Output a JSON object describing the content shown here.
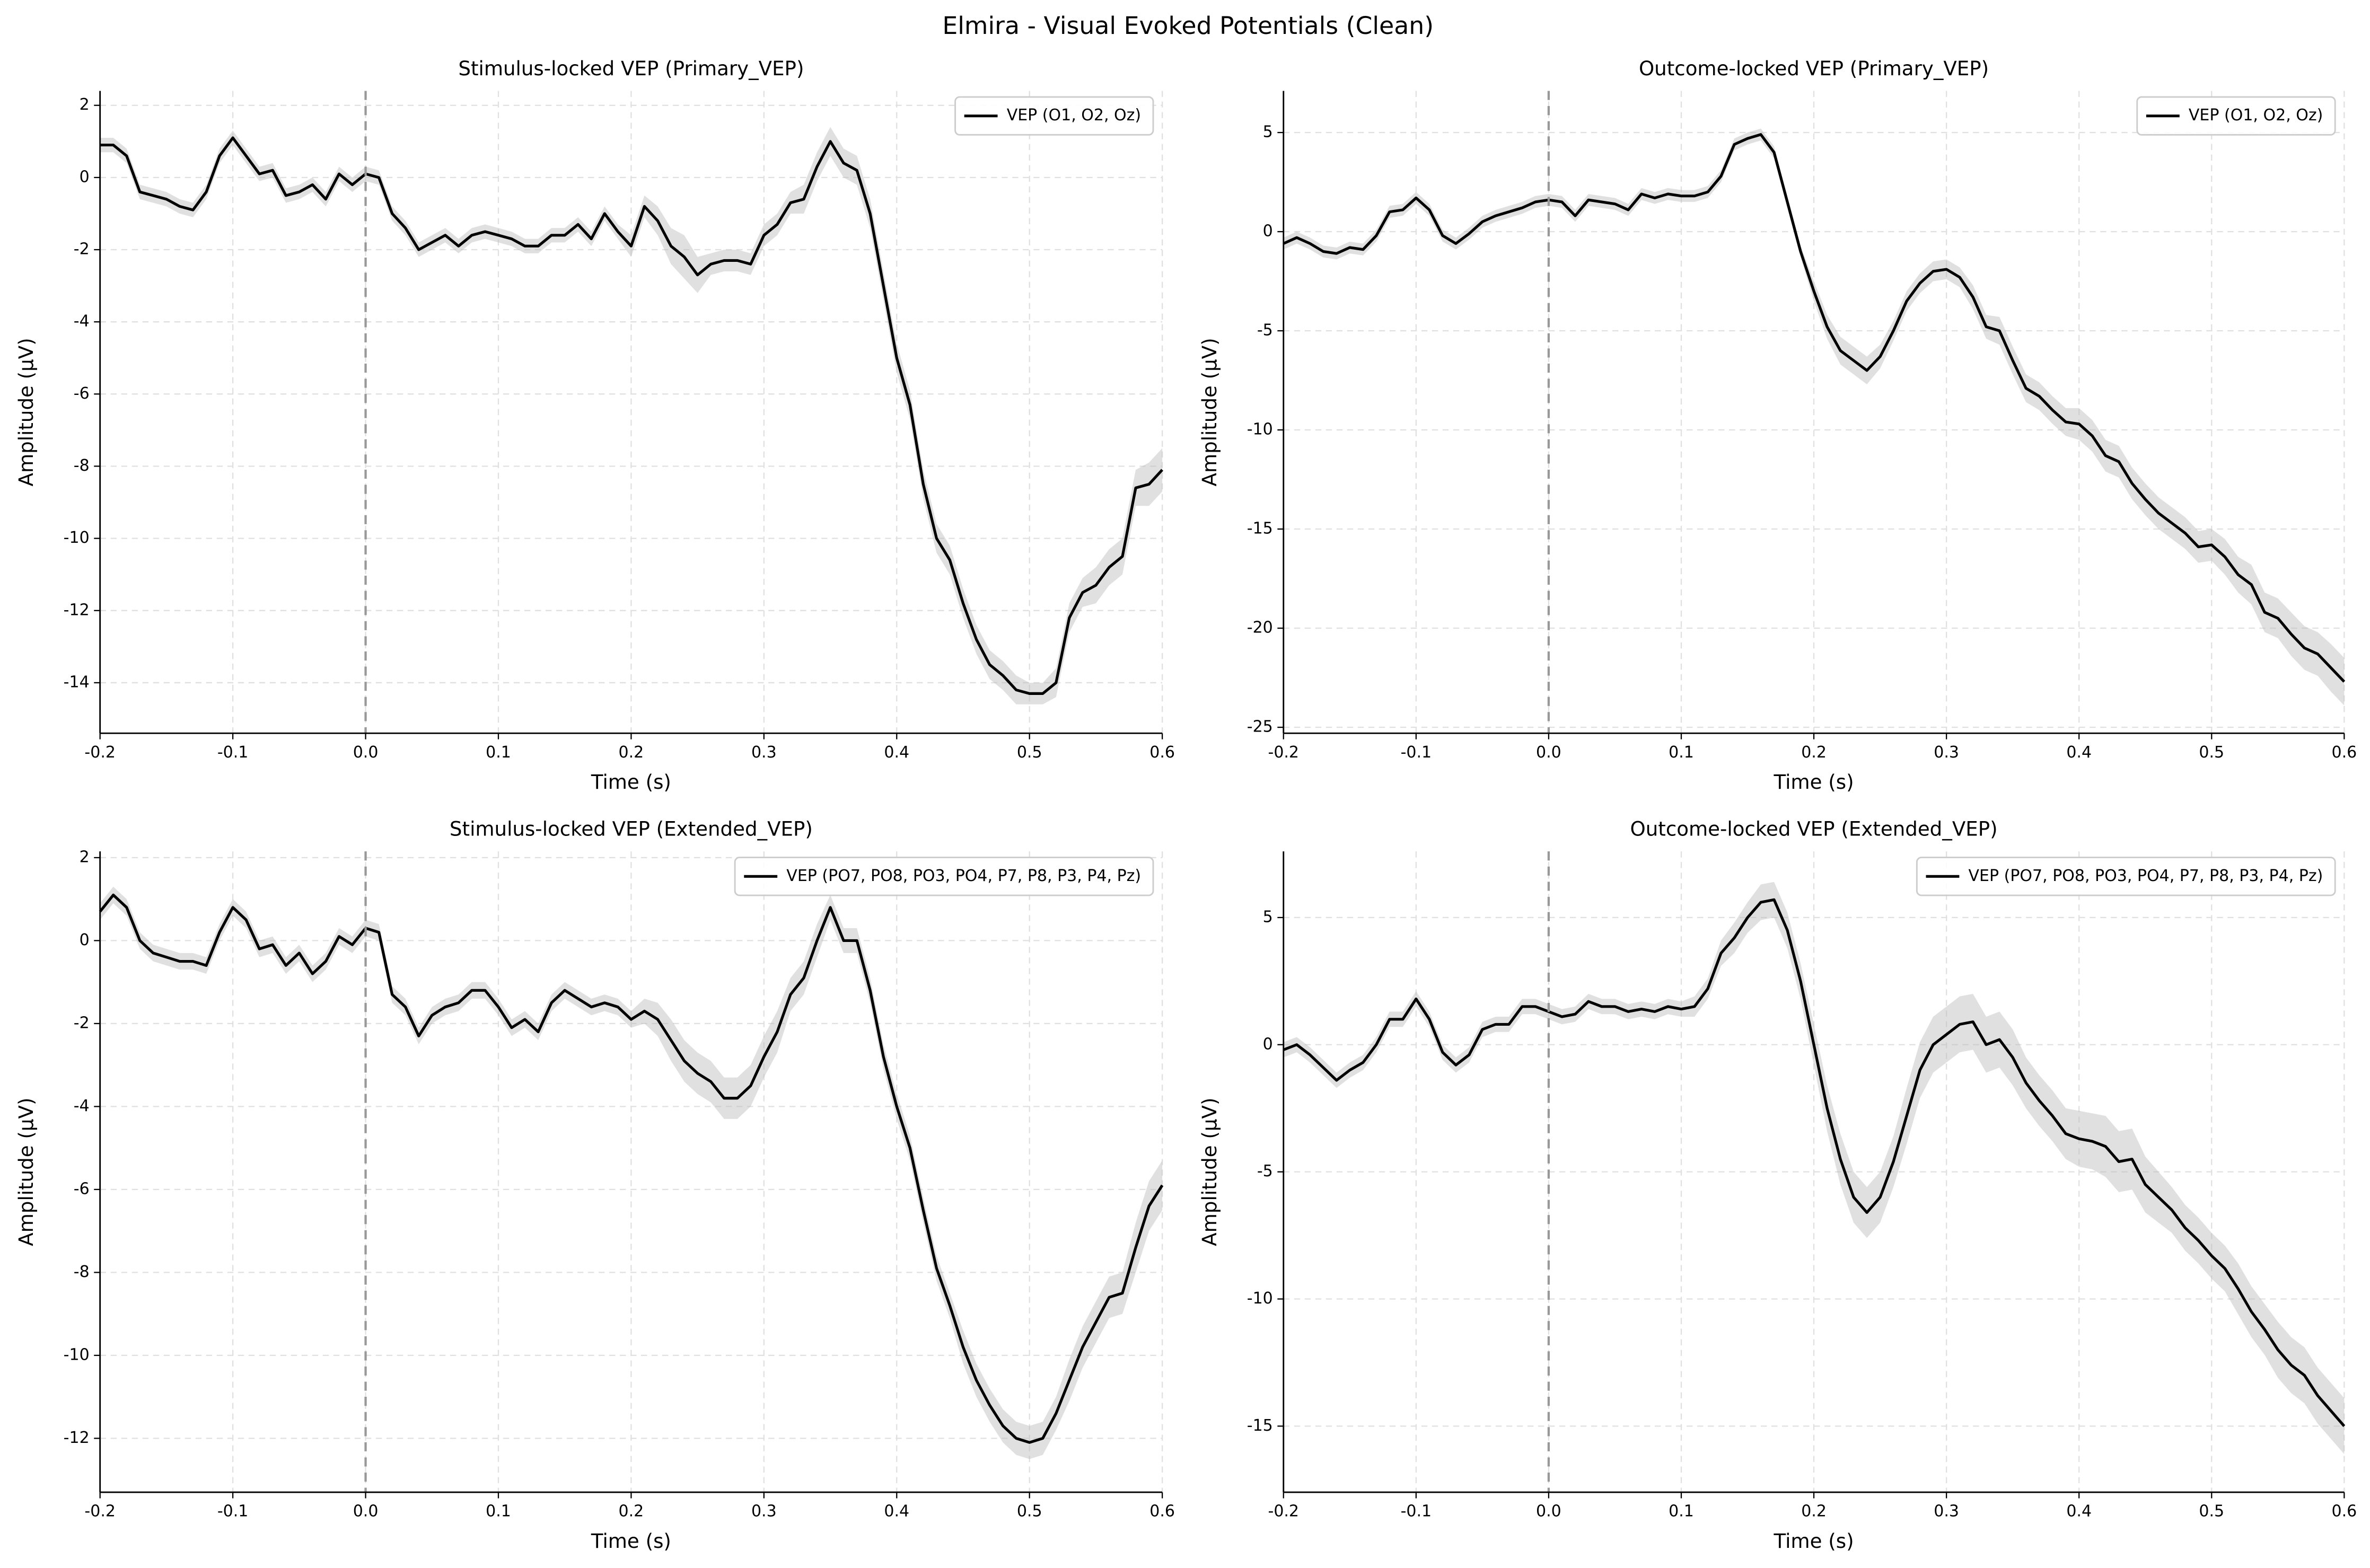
{
  "title": "Elmira - Visual Evoked Potentials (Clean)",
  "chart_data": [
    {
      "type": "line",
      "title": "Stimulus-locked VEP (Primary_VEP)",
      "xlabel": "Time (s)",
      "ylabel": "Amplitude (µV)",
      "legend": "upper right",
      "grid": true,
      "vlines": [
        0
      ],
      "xlim": [
        -0.2,
        0.6
      ],
      "ylim": [
        -15.4,
        2.4
      ],
      "xticks": [
        -0.2,
        -0.1,
        {
          "value": 0,
          "label": "0.0"
        },
        0.1,
        0.2,
        0.3,
        0.4,
        0.5,
        0.6
      ],
      "yticks": [
        -14,
        -12,
        -10,
        -8,
        -6,
        -4,
        -2,
        0,
        2
      ],
      "x": [
        -0.2,
        -0.19,
        -0.18,
        -0.17,
        -0.16,
        -0.15,
        -0.14,
        -0.13,
        -0.12,
        -0.11,
        -0.1,
        -0.09,
        -0.08,
        -0.07,
        -0.06,
        -0.05,
        -0.04,
        -0.03,
        -0.02,
        -0.01,
        0,
        0.01,
        0.02,
        0.03,
        0.04,
        0.05,
        0.06,
        0.07,
        0.08,
        0.09,
        0.1,
        0.11,
        0.12,
        0.13,
        0.14,
        0.15,
        0.16,
        0.17,
        0.18,
        0.19,
        0.2,
        0.21,
        0.22,
        0.23,
        0.24,
        0.25,
        0.26,
        0.27,
        0.28,
        0.29,
        0.3,
        0.31,
        0.32,
        0.33,
        0.34,
        0.35,
        0.36,
        0.37,
        0.38,
        0.39,
        0.4,
        0.41,
        0.42,
        0.43,
        0.44,
        0.45,
        0.46,
        0.47,
        0.48,
        0.49,
        0.5,
        0.51,
        0.52,
        0.53,
        0.54,
        0.55,
        0.56,
        0.57,
        0.58,
        0.59,
        0.6
      ],
      "series": [
        {
          "name": "VEP (O1, O2, Oz)",
          "color": "#000000",
          "band_color": "#bbbbbb",
          "values": [
            0.9,
            0.9,
            0.6,
            -0.4,
            -0.5,
            -0.6,
            -0.8,
            -0.9,
            -0.4,
            0.6,
            1.1,
            0.6,
            0.1,
            0.2,
            -0.5,
            -0.4,
            -0.2,
            -0.6,
            0.1,
            -0.2,
            0.1,
            0.0,
            -1.0,
            -1.4,
            -2.0,
            -1.8,
            -1.6,
            -1.9,
            -1.6,
            -1.5,
            -1.6,
            -1.7,
            -1.9,
            -1.9,
            -1.6,
            -1.6,
            -1.3,
            -1.7,
            -1.0,
            -1.5,
            -1.9,
            -0.8,
            -1.2,
            -1.9,
            -2.2,
            -2.7,
            -2.4,
            -2.3,
            -2.3,
            -2.4,
            -1.6,
            -1.3,
            -0.7,
            -0.6,
            0.3,
            1.0,
            0.4,
            0.2,
            -1.0,
            -3.0,
            -5.0,
            -6.3,
            -8.5,
            -10.0,
            -10.6,
            -11.8,
            -12.8,
            -13.5,
            -13.8,
            -14.2,
            -14.3,
            -14.3,
            -14.0,
            -12.2,
            -11.5,
            -11.3,
            -10.8,
            -10.5,
            -8.6,
            -8.5,
            -8.1
          ],
          "errors": [
            0.2,
            0.2,
            0.2,
            0.2,
            0.2,
            0.2,
            0.2,
            0.2,
            0.2,
            0.2,
            0.2,
            0.2,
            0.2,
            0.2,
            0.2,
            0.2,
            0.2,
            0.2,
            0.2,
            0.2,
            0.2,
            0.2,
            0.2,
            0.2,
            0.2,
            0.2,
            0.2,
            0.2,
            0.2,
            0.2,
            0.2,
            0.2,
            0.2,
            0.2,
            0.2,
            0.2,
            0.2,
            0.2,
            0.2,
            0.2,
            0.3,
            0.3,
            0.4,
            0.5,
            0.6,
            0.5,
            0.3,
            0.3,
            0.3,
            0.3,
            0.3,
            0.3,
            0.3,
            0.4,
            0.4,
            0.4,
            0.4,
            0.4,
            0.4,
            0.4,
            0.4,
            0.4,
            0.4,
            0.4,
            0.4,
            0.4,
            0.4,
            0.4,
            0.4,
            0.4,
            0.3,
            0.3,
            0.4,
            0.4,
            0.4,
            0.5,
            0.5,
            0.5,
            0.5,
            0.6,
            0.6
          ]
        }
      ]
    },
    {
      "type": "line",
      "title": "Outcome-locked VEP (Primary_VEP)",
      "xlabel": "Time (s)",
      "ylabel": "Amplitude (µV)",
      "legend": "upper right",
      "grid": true,
      "vlines": [
        0
      ],
      "xlim": [
        -0.2,
        0.6
      ],
      "ylim": [
        -25.3,
        7.1
      ],
      "xticks": [
        -0.2,
        -0.1,
        {
          "value": 0,
          "label": "0.0"
        },
        0.1,
        0.2,
        0.3,
        0.4,
        0.5,
        0.6
      ],
      "yticks": [
        -25,
        -20,
        -15,
        -10,
        -5,
        0,
        5
      ],
      "x": [
        -0.2,
        -0.19,
        -0.18,
        -0.17,
        -0.16,
        -0.15,
        -0.14,
        -0.13,
        -0.12,
        -0.11,
        -0.1,
        -0.09,
        -0.08,
        -0.07,
        -0.06,
        -0.05,
        -0.04,
        -0.03,
        -0.02,
        -0.01,
        0,
        0.01,
        0.02,
        0.03,
        0.04,
        0.05,
        0.06,
        0.07,
        0.08,
        0.09,
        0.1,
        0.11,
        0.12,
        0.13,
        0.14,
        0.15,
        0.16,
        0.17,
        0.18,
        0.19,
        0.2,
        0.21,
        0.22,
        0.23,
        0.24,
        0.25,
        0.26,
        0.27,
        0.28,
        0.29,
        0.3,
        0.31,
        0.32,
        0.33,
        0.34,
        0.35,
        0.36,
        0.37,
        0.38,
        0.39,
        0.4,
        0.41,
        0.42,
        0.43,
        0.44,
        0.45,
        0.46,
        0.47,
        0.48,
        0.49,
        0.5,
        0.51,
        0.52,
        0.53,
        0.54,
        0.55,
        0.56,
        0.57,
        0.58,
        0.59,
        0.6
      ],
      "series": [
        {
          "name": "VEP (O1, O2, Oz)",
          "color": "#000000",
          "band_color": "#bbbbbb",
          "values": [
            -0.6,
            -0.3,
            -0.6,
            -1.0,
            -1.1,
            -0.8,
            -0.9,
            -0.2,
            1.0,
            1.1,
            1.7,
            1.1,
            -0.2,
            -0.6,
            -0.1,
            0.5,
            0.8,
            1.0,
            1.2,
            1.5,
            1.6,
            1.5,
            0.8,
            1.6,
            1.5,
            1.4,
            1.1,
            1.9,
            1.7,
            1.9,
            1.8,
            1.8,
            2.0,
            2.8,
            4.4,
            4.7,
            4.9,
            4.0,
            1.5,
            -1.0,
            -3.0,
            -4.8,
            -6.0,
            -6.5,
            -7.0,
            -6.3,
            -5.0,
            -3.5,
            -2.6,
            -2.0,
            -1.9,
            -2.3,
            -3.3,
            -4.8,
            -5.0,
            -6.5,
            -7.9,
            -8.3,
            -9.0,
            -9.6,
            -9.7,
            -10.3,
            -11.3,
            -11.6,
            -12.7,
            -13.5,
            -14.2,
            -14.7,
            -15.2,
            -15.9,
            -15.8,
            -16.4,
            -17.3,
            -17.8,
            -19.2,
            -19.5,
            -20.3,
            -21.0,
            -21.3,
            -22.0,
            -22.7
          ],
          "errors": [
            0.3,
            0.3,
            0.3,
            0.3,
            0.3,
            0.3,
            0.3,
            0.3,
            0.3,
            0.3,
            0.3,
            0.3,
            0.3,
            0.3,
            0.3,
            0.3,
            0.3,
            0.3,
            0.3,
            0.3,
            0.3,
            0.3,
            0.3,
            0.3,
            0.3,
            0.3,
            0.3,
            0.3,
            0.3,
            0.3,
            0.3,
            0.3,
            0.3,
            0.3,
            0.3,
            0.3,
            0.3,
            0.3,
            0.3,
            0.3,
            0.5,
            0.6,
            0.7,
            0.7,
            0.7,
            0.6,
            0.5,
            0.5,
            0.5,
            0.5,
            0.5,
            0.5,
            0.6,
            0.6,
            0.7,
            0.7,
            0.7,
            0.7,
            0.7,
            0.7,
            0.8,
            0.8,
            0.8,
            0.8,
            0.8,
            0.8,
            0.8,
            0.8,
            0.8,
            0.8,
            0.8,
            0.9,
            0.9,
            1.0,
            1.0,
            1.0,
            1.1,
            1.1,
            1.1,
            1.2,
            1.2
          ]
        }
      ]
    },
    {
      "type": "line",
      "title": "Stimulus-locked VEP (Extended_VEP)",
      "xlabel": "Time (s)",
      "ylabel": "Amplitude (µV)",
      "legend": "upper right",
      "grid": true,
      "vlines": [
        0
      ],
      "xlim": [
        -0.2,
        0.6
      ],
      "ylim": [
        -13.3,
        2.15
      ],
      "xticks": [
        -0.2,
        -0.1,
        {
          "value": 0,
          "label": "0.0"
        },
        0.1,
        0.2,
        0.3,
        0.4,
        0.5,
        0.6
      ],
      "yticks": [
        -12,
        -10,
        -8,
        -6,
        -4,
        -2,
        0,
        2
      ],
      "x": [
        -0.2,
        -0.19,
        -0.18,
        -0.17,
        -0.16,
        -0.15,
        -0.14,
        -0.13,
        -0.12,
        -0.11,
        -0.1,
        -0.09,
        -0.08,
        -0.07,
        -0.06,
        -0.05,
        -0.04,
        -0.03,
        -0.02,
        -0.01,
        0,
        0.01,
        0.02,
        0.03,
        0.04,
        0.05,
        0.06,
        0.07,
        0.08,
        0.09,
        0.1,
        0.11,
        0.12,
        0.13,
        0.14,
        0.15,
        0.16,
        0.17,
        0.18,
        0.19,
        0.2,
        0.21,
        0.22,
        0.23,
        0.24,
        0.25,
        0.26,
        0.27,
        0.28,
        0.29,
        0.3,
        0.31,
        0.32,
        0.33,
        0.34,
        0.35,
        0.36,
        0.37,
        0.38,
        0.39,
        0.4,
        0.41,
        0.42,
        0.43,
        0.44,
        0.45,
        0.46,
        0.47,
        0.48,
        0.49,
        0.5,
        0.51,
        0.52,
        0.53,
        0.54,
        0.55,
        0.56,
        0.57,
        0.58,
        0.59,
        0.6
      ],
      "series": [
        {
          "name": "VEP (PO7, PO8, PO3, PO4, P7, P8, P3, P4, Pz)",
          "color": "#000000",
          "band_color": "#bbbbbb",
          "values": [
            0.7,
            1.1,
            0.8,
            0.0,
            -0.3,
            -0.4,
            -0.5,
            -0.5,
            -0.6,
            0.2,
            0.8,
            0.5,
            -0.2,
            -0.1,
            -0.6,
            -0.3,
            -0.8,
            -0.5,
            0.1,
            -0.1,
            0.3,
            0.2,
            -1.3,
            -1.6,
            -2.3,
            -1.8,
            -1.6,
            -1.5,
            -1.2,
            -1.2,
            -1.6,
            -2.1,
            -1.9,
            -2.2,
            -1.5,
            -1.2,
            -1.4,
            -1.6,
            -1.5,
            -1.6,
            -1.9,
            -1.7,
            -1.9,
            -2.4,
            -2.9,
            -3.2,
            -3.4,
            -3.8,
            -3.8,
            -3.5,
            -2.8,
            -2.2,
            -1.3,
            -0.9,
            0.0,
            0.8,
            0.0,
            0.0,
            -1.2,
            -2.8,
            -4.0,
            -5.0,
            -6.5,
            -7.9,
            -8.8,
            -9.8,
            -10.6,
            -11.2,
            -11.7,
            -12.0,
            -12.1,
            -12.0,
            -11.4,
            -10.6,
            -9.8,
            -9.2,
            -8.6,
            -8.5,
            -7.4,
            -6.4,
            -5.9
          ],
          "errors": [
            0.2,
            0.2,
            0.2,
            0.2,
            0.2,
            0.2,
            0.2,
            0.2,
            0.2,
            0.2,
            0.2,
            0.2,
            0.2,
            0.2,
            0.2,
            0.2,
            0.2,
            0.2,
            0.2,
            0.2,
            0.2,
            0.2,
            0.2,
            0.2,
            0.2,
            0.2,
            0.2,
            0.2,
            0.2,
            0.2,
            0.2,
            0.2,
            0.2,
            0.2,
            0.2,
            0.2,
            0.2,
            0.2,
            0.2,
            0.2,
            0.2,
            0.3,
            0.4,
            0.5,
            0.5,
            0.5,
            0.5,
            0.5,
            0.5,
            0.5,
            0.5,
            0.5,
            0.4,
            0.4,
            0.4,
            0.3,
            0.3,
            0.3,
            0.3,
            0.3,
            0.3,
            0.3,
            0.3,
            0.3,
            0.3,
            0.4,
            0.4,
            0.4,
            0.4,
            0.4,
            0.4,
            0.4,
            0.4,
            0.5,
            0.5,
            0.5,
            0.5,
            0.5,
            0.6,
            0.6,
            0.6
          ]
        }
      ]
    },
    {
      "type": "line",
      "title": "Outcome-locked VEP (Extended_VEP)",
      "xlabel": "Time (s)",
      "ylabel": "Amplitude (µV)",
      "legend": "upper right",
      "grid": true,
      "vlines": [
        0
      ],
      "xlim": [
        -0.2,
        0.6
      ],
      "ylim": [
        -17.6,
        7.6
      ],
      "xticks": [
        -0.2,
        -0.1,
        {
          "value": 0,
          "label": "0.0"
        },
        0.1,
        0.2,
        0.3,
        0.4,
        0.5,
        0.6
      ],
      "yticks": [
        -15,
        -10,
        -5,
        0,
        5
      ],
      "x": [
        -0.2,
        -0.19,
        -0.18,
        -0.17,
        -0.16,
        -0.15,
        -0.14,
        -0.13,
        -0.12,
        -0.11,
        -0.1,
        -0.09,
        -0.08,
        -0.07,
        -0.06,
        -0.05,
        -0.04,
        -0.03,
        -0.02,
        -0.01,
        0,
        0.01,
        0.02,
        0.03,
        0.04,
        0.05,
        0.06,
        0.07,
        0.08,
        0.09,
        0.1,
        0.11,
        0.12,
        0.13,
        0.14,
        0.15,
        0.16,
        0.17,
        0.18,
        0.19,
        0.2,
        0.21,
        0.22,
        0.23,
        0.24,
        0.25,
        0.26,
        0.27,
        0.28,
        0.29,
        0.3,
        0.31,
        0.32,
        0.33,
        0.34,
        0.35,
        0.36,
        0.37,
        0.38,
        0.39,
        0.4,
        0.41,
        0.42,
        0.43,
        0.44,
        0.45,
        0.46,
        0.47,
        0.48,
        0.49,
        0.5,
        0.51,
        0.52,
        0.53,
        0.54,
        0.55,
        0.56,
        0.57,
        0.58,
        0.59,
        0.6
      ],
      "series": [
        {
          "name": "VEP (PO7, PO8, PO3, PO4, P7, P8, P3, P4, Pz)",
          "color": "#000000",
          "band_color": "#bbbbbb",
          "values": [
            -0.2,
            0.0,
            -0.4,
            -0.9,
            -1.4,
            -1.0,
            -0.7,
            0.0,
            1.0,
            1.0,
            1.8,
            1.0,
            -0.3,
            -0.8,
            -0.4,
            0.6,
            0.8,
            0.8,
            1.5,
            1.5,
            1.3,
            1.1,
            1.2,
            1.7,
            1.5,
            1.5,
            1.3,
            1.4,
            1.3,
            1.5,
            1.4,
            1.5,
            2.2,
            3.6,
            4.2,
            5.0,
            5.6,
            5.7,
            4.5,
            2.5,
            0.0,
            -2.5,
            -4.5,
            -6.0,
            -6.6,
            -6.0,
            -4.6,
            -2.8,
            -1.0,
            0.0,
            0.4,
            0.8,
            0.9,
            0.0,
            0.2,
            -0.5,
            -1.5,
            -2.2,
            -2.8,
            -3.5,
            -3.7,
            -3.8,
            -4.0,
            -4.6,
            -4.5,
            -5.5,
            -6.0,
            -6.5,
            -7.2,
            -7.7,
            -8.3,
            -8.8,
            -9.6,
            -10.5,
            -11.2,
            -12.0,
            -12.6,
            -13.0,
            -13.8,
            -14.4,
            -15.0
          ],
          "errors": [
            0.3,
            0.3,
            0.3,
            0.3,
            0.3,
            0.3,
            0.3,
            0.3,
            0.3,
            0.3,
            0.3,
            0.3,
            0.3,
            0.3,
            0.3,
            0.3,
            0.3,
            0.3,
            0.3,
            0.3,
            0.3,
            0.3,
            0.3,
            0.3,
            0.3,
            0.3,
            0.3,
            0.3,
            0.3,
            0.3,
            0.3,
            0.4,
            0.4,
            0.5,
            0.6,
            0.6,
            0.7,
            0.7,
            0.7,
            0.7,
            0.8,
            0.9,
            1.0,
            1.0,
            1.0,
            1.0,
            1.0,
            1.1,
            1.1,
            1.1,
            1.1,
            1.1,
            1.1,
            1.1,
            1.1,
            1.1,
            1.0,
            1.0,
            1.0,
            1.0,
            1.1,
            1.1,
            1.2,
            1.2,
            1.2,
            1.1,
            1.0,
            0.9,
            0.9,
            0.9,
            0.9,
            0.9,
            1.0,
            1.0,
            1.0,
            1.1,
            1.1,
            1.1,
            1.1,
            1.1,
            1.1
          ]
        }
      ]
    }
  ]
}
